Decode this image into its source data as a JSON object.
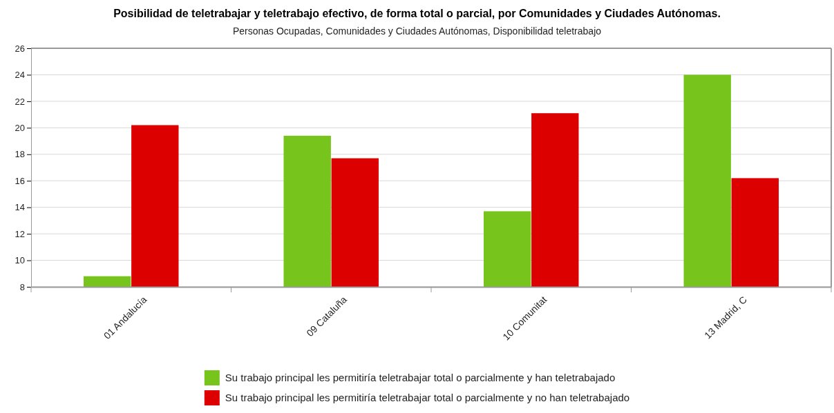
{
  "chart_data": {
    "type": "bar",
    "title": "Posibilidad de teletrabajar y teletrabajo efectivo, de forma total o parcial, por Comunidades y Ciudades Autónomas.",
    "subtitle": "Personas Ocupadas, Comunidades y Ciudades Autónomas, Disponibilidad teletrabajo",
    "categories": [
      "01 Andalucía",
      "09 Cataluña",
      "10 Comunitat",
      "13 Madrid, C"
    ],
    "series": [
      {
        "name": "Su trabajo principal les permitiría teletrabajar total o parcialmente y han teletrabajado",
        "color": "#77c41c",
        "values": [
          8.8,
          19.4,
          13.7,
          24.0
        ]
      },
      {
        "name": "Su trabajo principal les permitiría teletrabajar total o parcialmente y no han teletrabajado",
        "color": "#dd0000",
        "values": [
          20.2,
          17.7,
          21.1,
          16.2
        ]
      }
    ],
    "ylim": [
      8,
      26
    ],
    "yticks": [
      8,
      10,
      12,
      14,
      16,
      18,
      20,
      22,
      24,
      26
    ],
    "grid": "y",
    "legend": "bottom"
  }
}
